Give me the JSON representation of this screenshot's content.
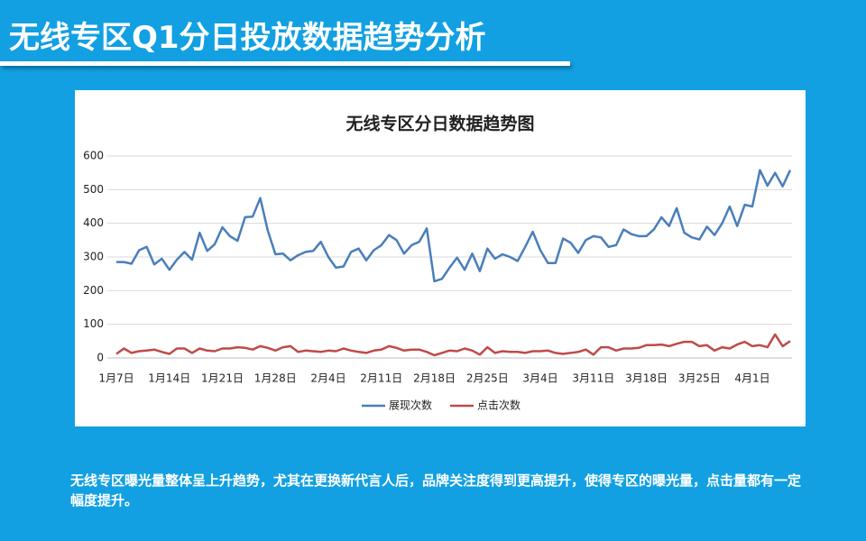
{
  "title": "无线专区Q1分日投放数据趋势分析",
  "summary": "无线专区曝光量整体呈上升趋势，尤其在更换新代言人后，品牌关注度得到更高提升，使得专区的曝光量，点击量都有一定幅度提升。",
  "chart_data": {
    "type": "line",
    "title": "无线专区分日数据趋势图",
    "categories": [
      "1月7日",
      null,
      null,
      null,
      null,
      null,
      null,
      "1月14日",
      null,
      null,
      null,
      null,
      null,
      null,
      "1月21日",
      null,
      null,
      null,
      null,
      null,
      null,
      "1月28日",
      null,
      null,
      null,
      null,
      null,
      null,
      "2月4日",
      null,
      null,
      null,
      null,
      null,
      null,
      "2月11日",
      null,
      null,
      null,
      null,
      null,
      null,
      "2月18日",
      null,
      null,
      null,
      null,
      null,
      null,
      "2月25日",
      null,
      null,
      null,
      null,
      null,
      null,
      "3月4日",
      null,
      null,
      null,
      null,
      null,
      null,
      "3月11日",
      null,
      null,
      null,
      null,
      null,
      null,
      "3月18日",
      null,
      null,
      null,
      null,
      null,
      null,
      "3月25日",
      null,
      null,
      null,
      null,
      null,
      null,
      "4月1日",
      null,
      null,
      null,
      null,
      null
    ],
    "series": [
      {
        "name": "展现次数",
        "color": "#4a7ebb",
        "values": [
          285,
          285,
          280,
          320,
          330,
          278,
          295,
          262,
          292,
          315,
          292,
          372,
          318,
          338,
          388,
          362,
          348,
          418,
          420,
          475,
          378,
          308,
          310,
          290,
          305,
          315,
          318,
          345,
          300,
          268,
          272,
          315,
          325,
          290,
          320,
          335,
          365,
          350,
          310,
          335,
          345,
          385,
          228,
          235,
          268,
          298,
          262,
          310,
          258,
          325,
          295,
          308,
          300,
          288,
          330,
          375,
          320,
          282,
          282,
          355,
          342,
          312,
          350,
          362,
          358,
          330,
          335,
          382,
          368,
          362,
          362,
          382,
          418,
          392,
          445,
          372,
          358,
          352,
          390,
          365,
          400,
          450,
          392,
          455,
          450,
          558,
          512,
          550,
          510,
          558
        ]
      },
      {
        "name": "点击次数",
        "color": "#be4b48",
        "values": [
          12,
          28,
          15,
          20,
          22,
          25,
          18,
          12,
          28,
          28,
          15,
          28,
          22,
          20,
          28,
          28,
          32,
          30,
          25,
          35,
          30,
          22,
          32,
          35,
          18,
          22,
          20,
          18,
          22,
          20,
          28,
          22,
          18,
          15,
          22,
          25,
          35,
          30,
          22,
          25,
          25,
          18,
          8,
          15,
          22,
          20,
          28,
          22,
          10,
          32,
          15,
          20,
          18,
          18,
          15,
          20,
          20,
          22,
          15,
          12,
          15,
          18,
          25,
          10,
          32,
          32,
          22,
          28,
          28,
          30,
          38,
          38,
          40,
          35,
          42,
          48,
          48,
          35,
          38,
          22,
          32,
          28,
          40,
          48,
          35,
          38,
          32,
          70,
          35,
          50
        ]
      }
    ],
    "ylim": [
      0,
      600
    ],
    "yticks": [
      0,
      100,
      200,
      300,
      400,
      500,
      600
    ],
    "grid": true
  }
}
